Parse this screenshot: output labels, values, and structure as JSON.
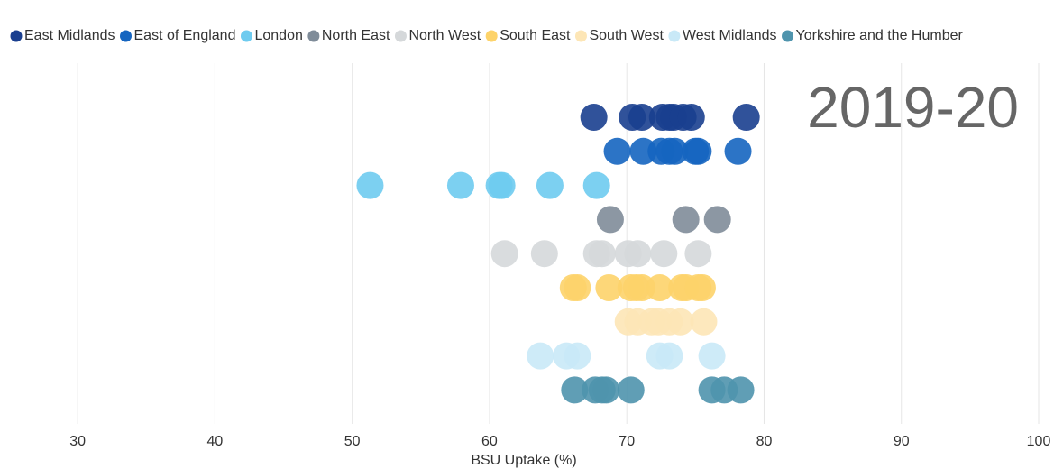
{
  "chart_data": {
    "type": "scatter",
    "annotation": "2019-20",
    "x_label": "BSU Uptake (%)",
    "xlim": [
      25,
      100
    ],
    "xticks": [
      30,
      40,
      50,
      60,
      70,
      80,
      90,
      100
    ],
    "grid": true,
    "legend": "top",
    "series": [
      {
        "name": "East Midlands",
        "color": "#1a3f8f",
        "values": [
          67.6,
          70.4,
          71.1,
          72.6,
          73.1,
          73.4,
          74.1,
          74.7,
          78.7
        ]
      },
      {
        "name": "East of England",
        "color": "#1565c0",
        "values": [
          69.3,
          71.2,
          72.5,
          73.1,
          73.5,
          75.0,
          75.2,
          78.1
        ]
      },
      {
        "name": "London",
        "color": "#6ecbef",
        "values": [
          51.3,
          57.9,
          60.7,
          60.9,
          64.4,
          67.8
        ]
      },
      {
        "name": "North East",
        "color": "#7f8c99",
        "values": [
          68.8,
          74.3,
          76.6
        ]
      },
      {
        "name": "North West",
        "color": "#d5d8da",
        "values": [
          61.1,
          64.0,
          67.8,
          68.2,
          70.1,
          70.8,
          72.7,
          75.2
        ]
      },
      {
        "name": "South East",
        "color": "#fdd36a",
        "values": [
          66.1,
          66.4,
          68.7,
          70.3,
          70.7,
          71.1,
          72.4,
          74.0,
          74.3,
          75.2,
          75.5
        ]
      },
      {
        "name": "South West",
        "color": "#fde6b6",
        "values": [
          70.1,
          70.8,
          71.8,
          72.3,
          73.1,
          73.9,
          75.6
        ]
      },
      {
        "name": "West Midlands",
        "color": "#c9e9f7",
        "values": [
          63.7,
          65.6,
          66.4,
          72.4,
          73.1,
          76.2
        ]
      },
      {
        "name": "Yorkshire and the Humber",
        "color": "#4f94ad",
        "values": [
          66.2,
          67.7,
          68.2,
          68.5,
          70.3,
          76.2,
          77.1,
          78.3
        ]
      }
    ]
  }
}
